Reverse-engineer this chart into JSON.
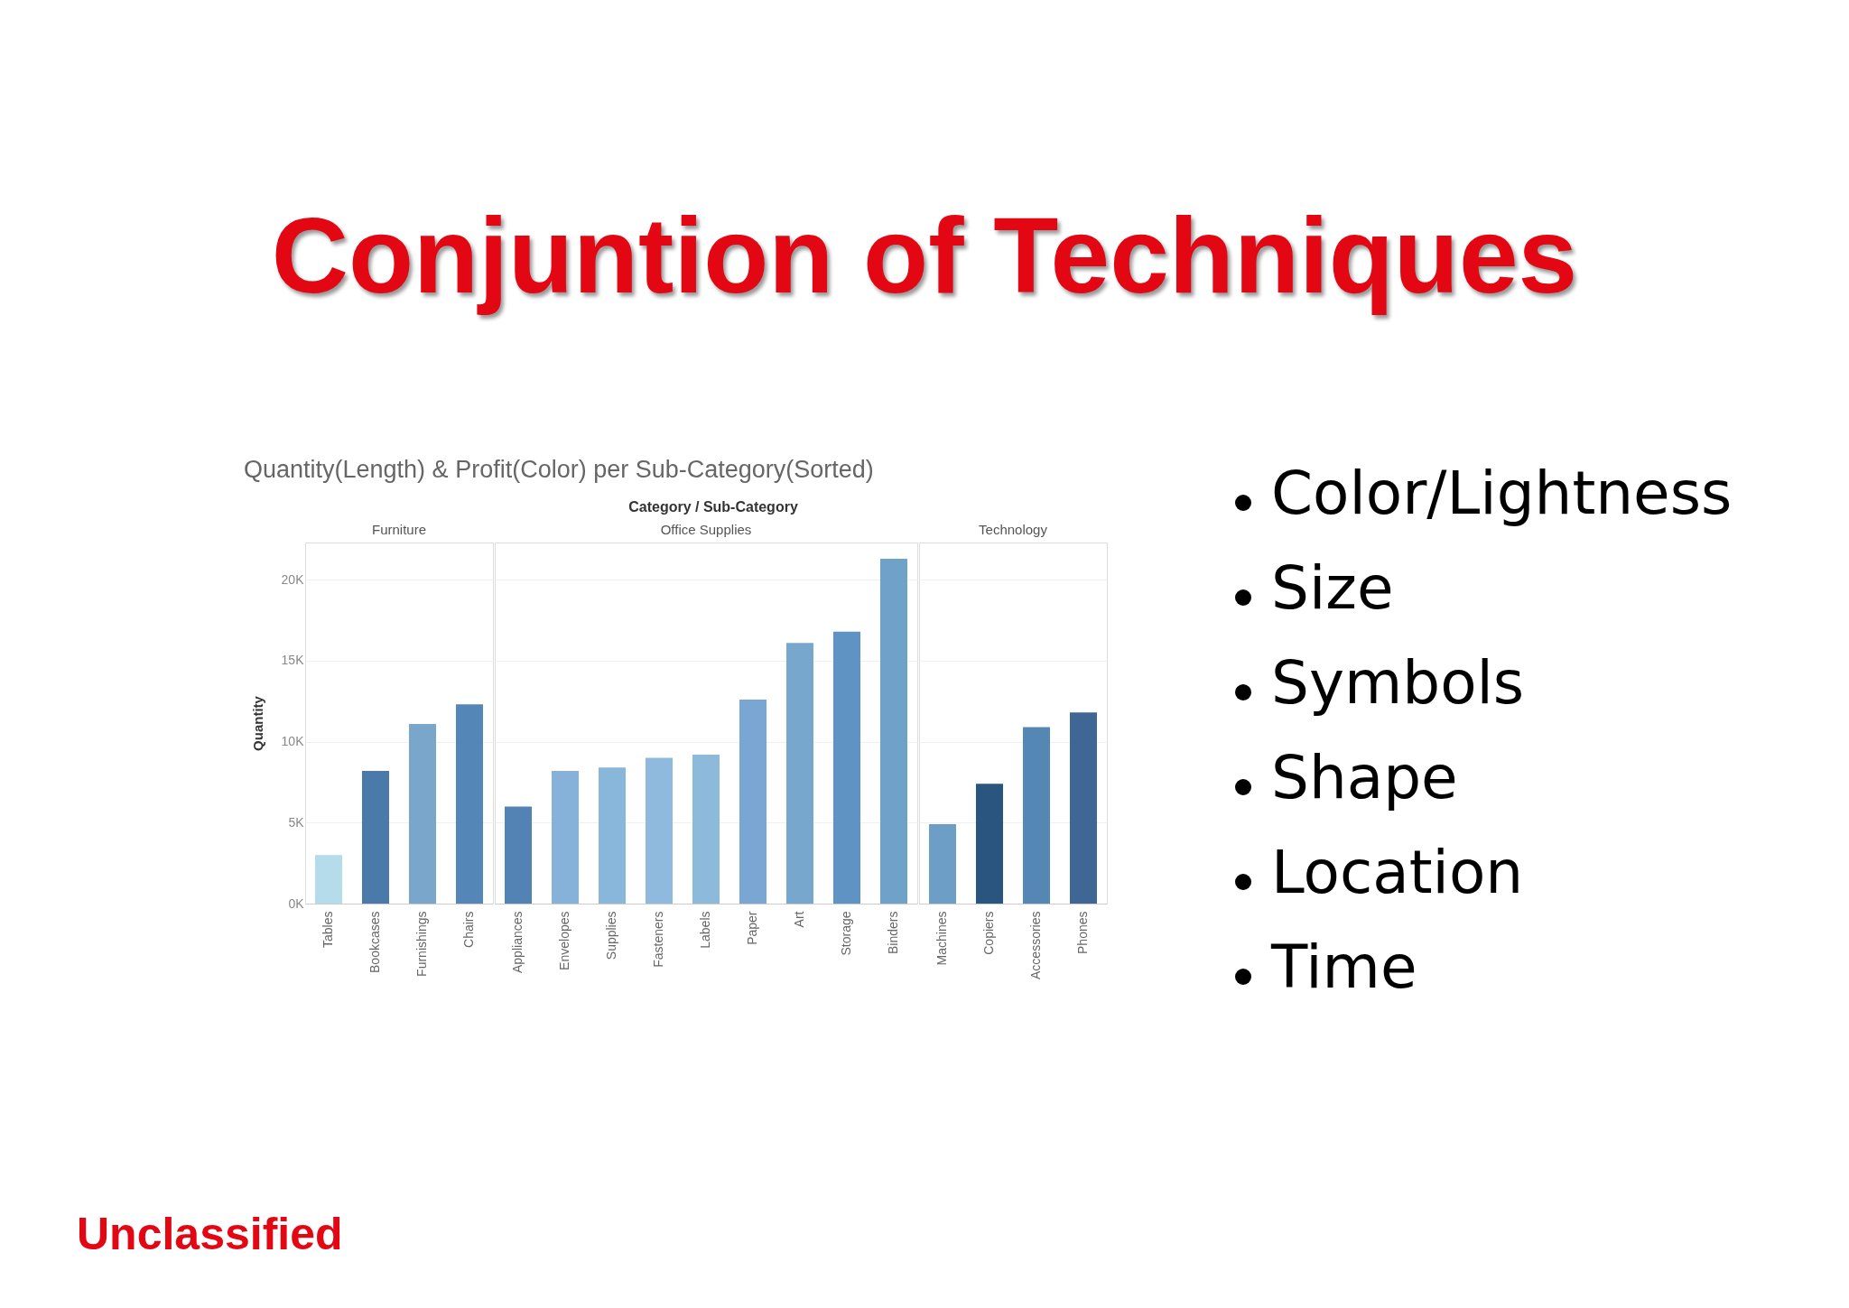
{
  "chart_data": [
    {
      "type": "other",
      "title": "Conjuntion of Techniques",
      "annotations": [
        "Quantity(Length) & Profit(Color) per Sub-Category(Sorted)",
        "Category / Sub-Category",
        "Color/Lightness",
        "Size",
        "Symbols",
        "Shape",
        "Location",
        "Time",
        "Unclassified"
      ]
    },
    {
      "type": "bar",
      "title": "Furniture",
      "ylabel": "Quantity",
      "categories": [
        "Tables",
        "Bookcases",
        "Furnishings",
        "Chairs"
      ],
      "values": [
        3000,
        8200,
        11100,
        12300
      ],
      "colors": [
        "#b5dcea",
        "#4a7aaa",
        "#7aa6cc",
        "#5586b8"
      ],
      "ylim": [
        0,
        22300
      ],
      "yticks": [
        {
          "value": 0,
          "label": "0K"
        },
        {
          "value": 5000,
          "label": "5K"
        },
        {
          "value": 10000,
          "label": "10K"
        },
        {
          "value": 15000,
          "label": "15K"
        },
        {
          "value": 20000,
          "label": "20K"
        }
      ],
      "grid": "y"
    },
    {
      "type": "bar",
      "title": "Office Supplies",
      "categories": [
        "Appliances",
        "Envelopes",
        "Supplies",
        "Fasteners",
        "Labels",
        "Paper",
        "Art",
        "Storage",
        "Binders"
      ],
      "values": [
        6000,
        8200,
        8400,
        9000,
        9200,
        12600,
        16100,
        16800,
        21300
      ],
      "colors": [
        "#5283b4",
        "#86b1d9",
        "#88b7da",
        "#8fbadd",
        "#8dbadb",
        "#79a6d3",
        "#78a7cd",
        "#5e93c3",
        "#6fa2c8"
      ],
      "ylim": [
        0,
        22300
      ],
      "yticks": [
        0,
        5000,
        10000,
        15000,
        20000
      ],
      "grid": "y",
      "tick_labels": "x"
    },
    {
      "type": "bar",
      "title": "Technology",
      "categories": [
        "Machines",
        "Copiers",
        "Accessories",
        "Phones"
      ],
      "values": [
        4900,
        7400,
        10900,
        11800
      ],
      "colors": [
        "#6d9fc6",
        "#29557f",
        "#5587b5",
        "#3e6795"
      ],
      "ylim": [
        0,
        22300
      ],
      "yticks": [
        0,
        5000,
        10000,
        15000,
        20000
      ],
      "grid": "y",
      "tick_labels": "x"
    }
  ]
}
